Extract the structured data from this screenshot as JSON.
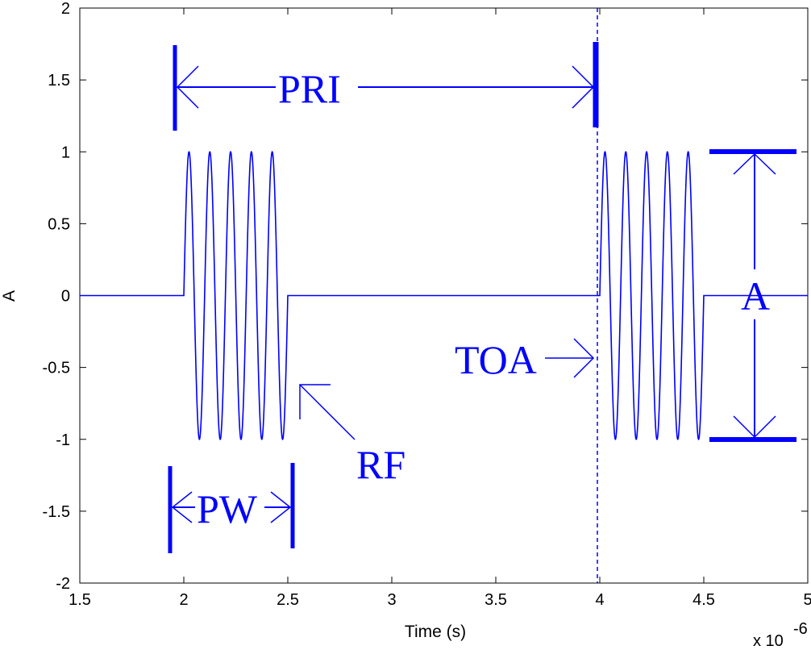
{
  "chart_data": {
    "type": "line",
    "xlabel": "Time (s)",
    "ylabel": "A",
    "x_multiplier_base": "x 10",
    "x_multiplier_exp": "-6",
    "xlim": [
      1.5,
      5
    ],
    "ylim": [
      -2,
      2
    ],
    "xticks": [
      1.5,
      2,
      2.5,
      3,
      3.5,
      4,
      4.5,
      5
    ],
    "yticks": [
      -2,
      -1.5,
      -1,
      -0.5,
      0,
      0.5,
      1,
      1.5,
      2
    ],
    "xtick_labels": [
      "1.5",
      "2",
      "2.5",
      "3",
      "3.5",
      "4",
      "4.5",
      "5"
    ],
    "ytick_labels": [
      "-2",
      "-1.5",
      "-1",
      "-0.5",
      "0",
      "0.5",
      "1",
      "1.5",
      "2"
    ],
    "grid": false,
    "line_color": "#0000ff",
    "series": [
      {
        "description_of_signal": "",
        "pulses": [
          {
            "start": 2.0,
            "end": 2.5,
            "cycles": 5,
            "amplitude": 1
          },
          {
            "start": 4.0,
            "end": 4.5,
            "cycles": 5,
            "amplitude": 1
          }
        ]
      }
    ],
    "vertical_dashed_line_x": 4.0,
    "annotations": [
      {
        "name": "pri",
        "text": "PRI"
      },
      {
        "name": "pw",
        "text": "PW"
      },
      {
        "name": "rf",
        "text": "RF"
      },
      {
        "name": "toa",
        "text": "TOA"
      },
      {
        "name": "amplitude",
        "text": "A"
      }
    ]
  }
}
